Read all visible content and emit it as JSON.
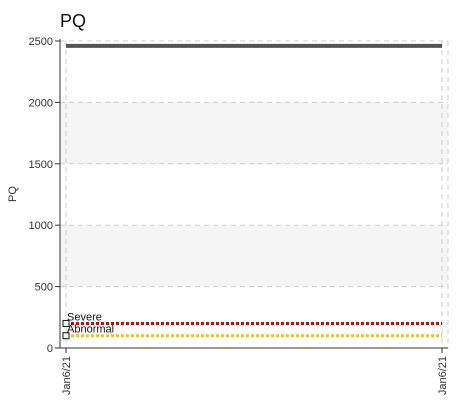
{
  "chart_data": {
    "type": "line",
    "title": "PQ",
    "xlabel": "",
    "ylabel": "PQ",
    "ylim": [
      0,
      2500
    ],
    "yticks": [
      0,
      500,
      1000,
      1500,
      2000,
      2500
    ],
    "ytick_labels": [
      "0",
      "500",
      "1000",
      "1500",
      "2000",
      "2500"
    ],
    "xtick_labels": [
      "Jan6/21",
      "Jan6/21"
    ],
    "grid": true,
    "bands": [
      {
        "from": 1000,
        "to": 1500,
        "color": "#ffffff"
      },
      {
        "from": 1500,
        "to": 2000,
        "color": "#f5f5f5"
      },
      {
        "from": 500,
        "to": 1000,
        "color": "#f5f5f5"
      },
      {
        "from": 0,
        "to": 500,
        "color": "#ffffff"
      },
      {
        "from": 2000,
        "to": 2500,
        "color": "#ffffff"
      }
    ],
    "series": [
      {
        "values": [
          2460,
          2460
        ],
        "color": "#555555",
        "style": "solid"
      }
    ],
    "thresholds": [
      {
        "label": "Severe",
        "value": 200,
        "color": "#dd0000"
      },
      {
        "label": "Abnormal",
        "value": 100,
        "color": "#f2c500"
      }
    ]
  }
}
